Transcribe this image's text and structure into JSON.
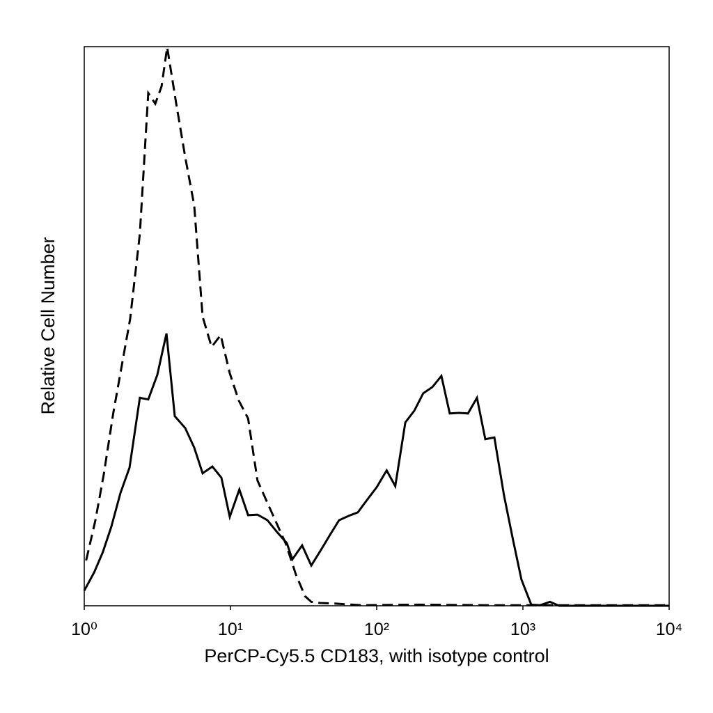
{
  "chart_data": {
    "type": "line",
    "xlabel": "PerCP-Cy5.5 CD183, with isotype control",
    "ylabel": "Relative Cell Number",
    "xscale": "log",
    "xlim": [
      1,
      10000
    ],
    "ylim": [
      0,
      100
    ],
    "xticks": [
      {
        "value": 1,
        "label": "10⁰"
      },
      {
        "value": 10,
        "label": "10¹"
      },
      {
        "value": 100,
        "label": "10²"
      },
      {
        "value": 1000,
        "label": "10³"
      },
      {
        "value": 10000,
        "label": "10⁴"
      }
    ],
    "grid": false,
    "series": [
      {
        "color": "#000000",
        "dashed": false,
        "x": [
          1.0,
          1.17,
          1.34,
          1.53,
          1.77,
          2.04,
          2.4,
          2.74,
          3.16,
          3.65,
          4.16,
          4.9,
          5.65,
          6.45,
          7.52,
          8.67,
          9.89,
          11.5,
          13.2,
          15.3,
          17.9,
          20.8,
          24.3,
          26.5,
          30.9,
          35.7,
          41.6,
          48.0,
          55.3,
          64.5,
          74.3,
          85.7,
          100,
          117,
          134,
          157,
          181,
          208,
          240,
          277,
          316,
          365,
          421,
          485,
          553,
          638,
          743,
          857,
          977,
          1140,
          1310,
          1530,
          1770,
          10000
        ],
        "values": [
          2.7,
          6.0,
          9.6,
          14.1,
          20.2,
          24.7,
          37.2,
          36.9,
          41.3,
          48.7,
          33.9,
          31.8,
          28.3,
          23.7,
          24.9,
          22.9,
          15.9,
          20.8,
          16.2,
          16.3,
          15.3,
          13.2,
          11.2,
          8.3,
          10.8,
          7.2,
          10.0,
          12.7,
          15.3,
          16.1,
          16.7,
          18.9,
          21.2,
          24.2,
          21.4,
          32.8,
          34.9,
          38.0,
          39.1,
          41.1,
          34.4,
          34.5,
          34.4,
          37.2,
          29.8,
          30.1,
          19.7,
          11.7,
          4.7,
          0.2,
          0.1,
          0.7,
          0,
          0
        ]
      },
      {
        "color": "#000000",
        "dashed": true,
        "x": [
          1.03,
          1.19,
          1.36,
          1.58,
          1.81,
          2.06,
          2.4,
          2.74,
          3.06,
          3.38,
          3.69,
          4.25,
          4.9,
          5.65,
          6.45,
          7.43,
          8.57,
          9.89,
          11.4,
          13.2,
          15.3,
          17.9,
          20.8,
          24.0,
          28.0,
          32.4,
          35.7,
          41.1,
          51.2,
          79.4,
          191,
          572,
          1710,
          10000
        ],
        "values": [
          8.1,
          15.2,
          23.5,
          34.5,
          43.1,
          51.3,
          66.5,
          91.7,
          89.8,
          92.9,
          99.9,
          89.9,
          80.3,
          71.6,
          51.7,
          46.3,
          48.4,
          41.6,
          36.7,
          33.5,
          22.4,
          18.4,
          14.6,
          11.0,
          5.6,
          1.7,
          0.7,
          0.5,
          0.4,
          0.1,
          0.2,
          0.1,
          0.1,
          0.1
        ]
      }
    ]
  }
}
